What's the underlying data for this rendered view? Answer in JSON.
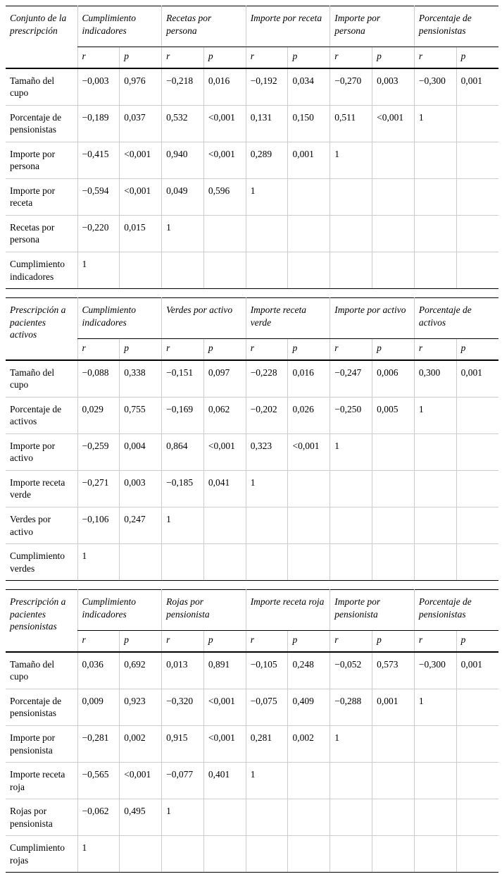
{
  "page": {
    "type": "correlation-tables"
  },
  "subheaders": [
    "r",
    "p"
  ],
  "tables": [
    {
      "title": "Conjunto de la prescripción",
      "col_groups": [
        "Cumplimiento indicadores",
        "Recetas por persona",
        "Importe por receta",
        "Importe por persona",
        "Porcentaje de pensionistas"
      ],
      "rows": [
        {
          "label": "Tamaño del cupo",
          "values": [
            "−0,003",
            "0,976",
            "−0,218",
            "0,016",
            "−0,192",
            "0,034",
            "−0,270",
            "0,003",
            "−0,300",
            "0,001"
          ]
        },
        {
          "label": "Porcentaje de pensionistas",
          "values": [
            "−0,189",
            "0,037",
            "0,532",
            "<0,001",
            "0,131",
            "0,150",
            "0,511",
            "<0,001",
            "1",
            ""
          ]
        },
        {
          "label": "Importe por persona",
          "values": [
            "−0,415",
            "<0,001",
            "0,940",
            "<0,001",
            "0,289",
            "0,001",
            "1",
            "",
            "",
            ""
          ]
        },
        {
          "label": "Importe por receta",
          "values": [
            "−0,594",
            "<0,001",
            "0,049",
            "0,596",
            "1",
            "",
            "",
            "",
            "",
            ""
          ]
        },
        {
          "label": "Recetas por persona",
          "values": [
            "−0,220",
            "0,015",
            "1",
            "",
            "",
            "",
            "",
            "",
            "",
            ""
          ]
        },
        {
          "label": "Cumplimiento indicadores",
          "values": [
            "1",
            "",
            "",
            "",
            "",
            "",
            "",
            "",
            "",
            ""
          ]
        }
      ]
    },
    {
      "title": "Prescripción a pacientes activos",
      "col_groups": [
        "Cumplimiento indicadores",
        "Verdes por activo",
        "Importe receta verde",
        "Importe por activo",
        "Porcentaje de activos"
      ],
      "rows": [
        {
          "label": "Tamaño del cupo",
          "values": [
            "−0,088",
            "0,338",
            "−0,151",
            "0,097",
            "−0,228",
            "0,016",
            "−0,247",
            "0,006",
            "0,300",
            "0,001"
          ]
        },
        {
          "label": "Porcentaje de activos",
          "values": [
            "0,029",
            "0,755",
            "−0,169",
            "0,062",
            "−0,202",
            "0,026",
            "−0,250",
            "0,005",
            "1",
            ""
          ]
        },
        {
          "label": "Importe por activo",
          "values": [
            "−0,259",
            "0,004",
            "0,864",
            "<0,001",
            "0,323",
            "<0,001",
            "1",
            "",
            "",
            ""
          ]
        },
        {
          "label": "Importe receta verde",
          "values": [
            "−0,271",
            "0,003",
            "−0,185",
            "0,041",
            "1",
            "",
            "",
            "",
            "",
            ""
          ]
        },
        {
          "label": "Verdes por activo",
          "values": [
            "−0,106",
            "0,247",
            "1",
            "",
            "",
            "",
            "",
            "",
            "",
            ""
          ]
        },
        {
          "label": "Cumplimiento verdes",
          "values": [
            "1",
            "",
            "",
            "",
            "",
            "",
            "",
            "",
            "",
            ""
          ]
        }
      ]
    },
    {
      "title": "Prescripción a pacientes pensionistas",
      "col_groups": [
        "Cumplimiento indicadores",
        "Rojas por pensionista",
        "Importe receta roja",
        "Importe por pensionista",
        "Porcentaje de pensionistas"
      ],
      "rows": [
        {
          "label": "Tamaño del cupo",
          "values": [
            "0,036",
            "0,692",
            "0,013",
            "0,891",
            "−0,105",
            "0,248",
            "−0,052",
            "0,573",
            "−0,300",
            "0,001"
          ]
        },
        {
          "label": "Porcentaje de pensionistas",
          "values": [
            "0,009",
            "0,923",
            "−0,320",
            "<0,001",
            "−0,075",
            "0,409",
            "−0,288",
            "0,001",
            "1",
            ""
          ]
        },
        {
          "label": "Importe por pensionista",
          "values": [
            "−0,281",
            "0,002",
            "0,915",
            "<0,001",
            "0,281",
            "0,002",
            "1",
            "",
            "",
            ""
          ]
        },
        {
          "label": "Importe receta roja",
          "values": [
            "−0,565",
            "<0,001",
            "−0,077",
            "0,401",
            "1",
            "",
            "",
            "",
            "",
            ""
          ]
        },
        {
          "label": "Rojas por pensionista",
          "values": [
            "−0,062",
            "0,495",
            "1",
            "",
            "",
            "",
            "",
            "",
            "",
            ""
          ]
        },
        {
          "label": "Cumplimiento rojas",
          "values": [
            "1",
            "",
            "",
            "",
            "",
            "",
            "",
            "",
            "",
            ""
          ]
        }
      ]
    }
  ]
}
